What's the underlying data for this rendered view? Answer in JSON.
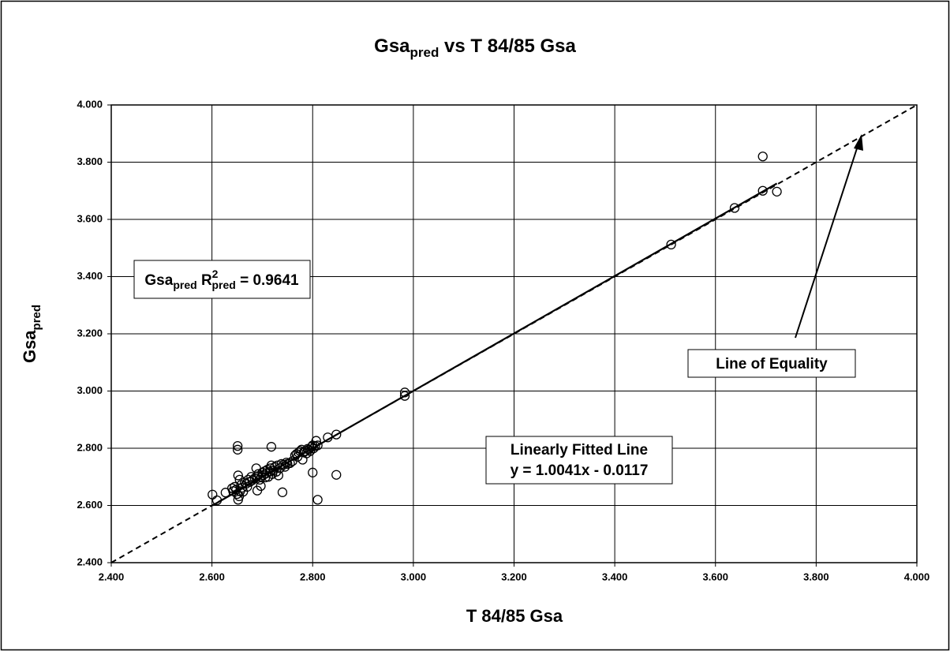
{
  "chart_data": {
    "type": "scatter",
    "title": {
      "main": "Gsa",
      "sub": "pred",
      "rest": " vs T 84/85 Gsa"
    },
    "x_label": "T 84/85 Gsa",
    "y_label": {
      "main": "Gsa",
      "sub": "pred"
    },
    "xlim": [
      2.4,
      4.0
    ],
    "ylim": [
      2.4,
      4.0
    ],
    "xticks": [
      {
        "value": 2.4,
        "label": "2.400"
      },
      {
        "value": 2.6,
        "label": "2.600"
      },
      {
        "value": 2.8,
        "label": "2.800"
      },
      {
        "value": 3.0,
        "label": "3.000"
      },
      {
        "value": 3.2,
        "label": "3.200"
      },
      {
        "value": 3.4,
        "label": "3.400"
      },
      {
        "value": 3.6,
        "label": "3.600"
      },
      {
        "value": 3.8,
        "label": "3.800"
      },
      {
        "value": 4.0,
        "label": "4.000"
      }
    ],
    "yticks": [
      {
        "value": 2.4,
        "label": "2.400"
      },
      {
        "value": 2.6,
        "label": "2.600"
      },
      {
        "value": 2.8,
        "label": "2.800"
      },
      {
        "value": 3.0,
        "label": "3.000"
      },
      {
        "value": 3.2,
        "label": "3.200"
      },
      {
        "value": 3.4,
        "label": "3.400"
      },
      {
        "value": 3.6,
        "label": "3.600"
      },
      {
        "value": 3.8,
        "label": "3.800"
      },
      {
        "value": 4.0,
        "label": "4.000"
      }
    ],
    "grid": true,
    "series": [
      {
        "color": "#000000",
        "x": [
          2.601,
          2.61,
          2.627,
          2.64,
          2.642,
          2.645,
          2.648,
          2.65,
          2.651,
          2.651,
          2.652,
          2.652,
          2.654,
          2.655,
          2.656,
          2.658,
          2.66,
          2.662,
          2.665,
          2.668,
          2.67,
          2.672,
          2.675,
          2.678,
          2.68,
          2.685,
          2.688,
          2.69,
          2.69,
          2.692,
          2.695,
          2.697,
          2.698,
          2.7,
          2.702,
          2.705,
          2.706,
          2.708,
          2.71,
          2.712,
          2.715,
          2.716,
          2.718,
          2.718,
          2.72,
          2.722,
          2.725,
          2.728,
          2.73,
          2.732,
          2.735,
          2.738,
          2.74,
          2.742,
          2.745,
          2.748,
          2.75,
          2.755,
          2.76,
          2.765,
          2.768,
          2.77,
          2.772,
          2.775,
          2.778,
          2.78,
          2.782,
          2.785,
          2.788,
          2.79,
          2.792,
          2.795,
          2.798,
          2.8,
          2.8,
          2.802,
          2.805,
          2.807,
          2.81,
          2.81,
          2.83,
          2.847,
          2.847,
          2.983,
          2.983,
          3.512,
          3.638,
          3.694,
          3.694,
          3.722
        ],
        "values": [
          2.638,
          2.618,
          2.645,
          2.66,
          2.65,
          2.665,
          2.655,
          2.64,
          2.808,
          2.795,
          2.705,
          2.62,
          2.632,
          2.69,
          2.65,
          2.672,
          2.662,
          2.648,
          2.68,
          2.676,
          2.665,
          2.69,
          2.682,
          2.7,
          2.688,
          2.695,
          2.73,
          2.652,
          2.702,
          2.71,
          2.69,
          2.668,
          2.7,
          2.715,
          2.706,
          2.72,
          2.698,
          2.712,
          2.725,
          2.7,
          2.718,
          2.73,
          2.805,
          2.74,
          2.71,
          2.722,
          2.735,
          2.718,
          2.74,
          2.705,
          2.73,
          2.745,
          2.646,
          2.742,
          2.735,
          2.75,
          2.745,
          2.748,
          2.755,
          2.775,
          2.78,
          2.77,
          2.785,
          2.79,
          2.795,
          2.76,
          2.785,
          2.79,
          2.782,
          2.798,
          2.795,
          2.79,
          2.805,
          2.715,
          2.81,
          2.8,
          2.808,
          2.826,
          2.62,
          2.81,
          2.838,
          2.848,
          2.707,
          2.995,
          2.983,
          3.512,
          3.64,
          3.82,
          3.7,
          3.697
        ]
      }
    ],
    "r2_note": {
      "a": "Gsa",
      "a_sub": "pred",
      "b": " R",
      "b_sup": "2",
      "b_sub": "pred",
      "c": " = 0.9641"
    },
    "equality": {
      "label": "Line of Equality"
    },
    "fit": {
      "label": "Linearly Fitted Line",
      "equation": "y = 1.0041x - 0.0117",
      "slope": 1.0041,
      "intercept": -0.0117
    }
  }
}
